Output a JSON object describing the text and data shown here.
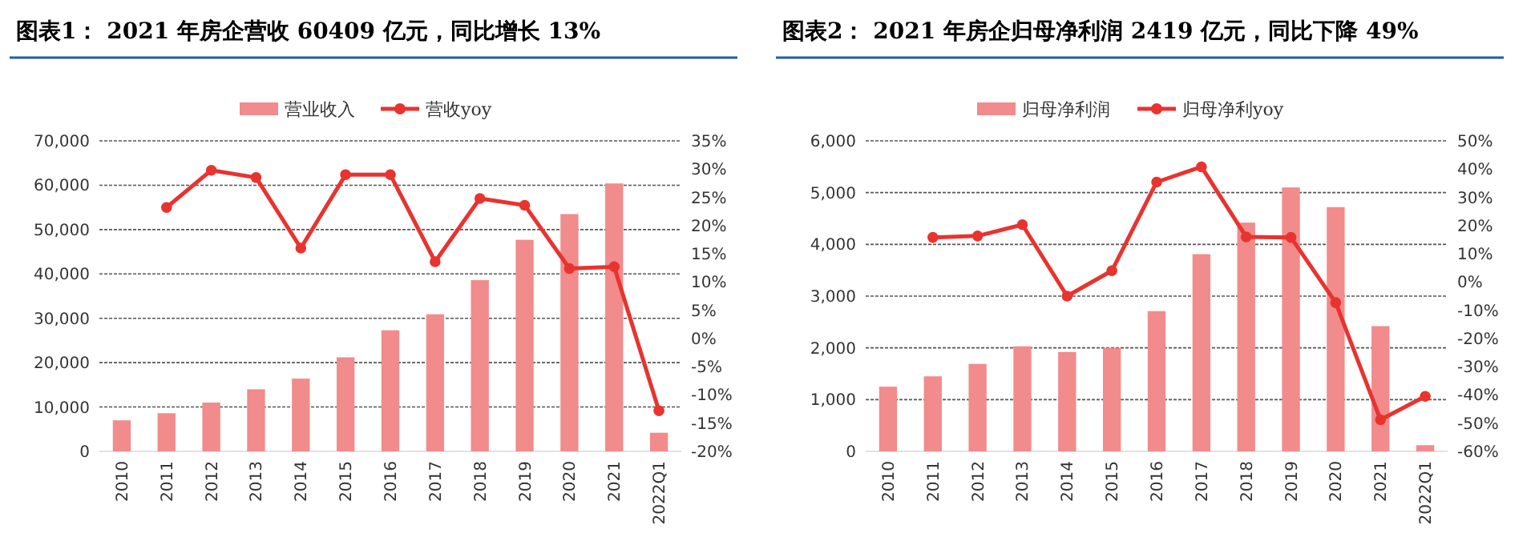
{
  "chart_data": [
    {
      "type": "bar",
      "title": "图表1：  2021 年房企营收 60409 亿元，同比增长 13%",
      "categories": [
        "2010",
        "2011",
        "2012",
        "2013",
        "2014",
        "2015",
        "2016",
        "2017",
        "2018",
        "2019",
        "2020",
        "2021",
        "2022Q1"
      ],
      "series": [
        {
          "name": "营业收入",
          "color": "#f28b8b",
          "values": [
            7000,
            8600,
            11000,
            14000,
            16400,
            21200,
            27300,
            30900,
            38600,
            47700,
            53500,
            60400,
            4200
          ]
        },
        {
          "name": "营收yoy",
          "type": "line",
          "axis": "y2",
          "color": "#e8332f",
          "values": [
            null,
            23.2,
            29.8,
            28.5,
            16,
            29,
            29,
            13.6,
            24.8,
            23.6,
            12.4,
            12.7,
            -12.8
          ]
        }
      ],
      "ylim": [
        0,
        70000
      ],
      "yticks": [
        {
          "value": 0,
          "label": "0"
        },
        {
          "value": 10000,
          "label": "10,000"
        },
        {
          "value": 20000,
          "label": "20,000"
        },
        {
          "value": 30000,
          "label": "30,000"
        },
        {
          "value": 40000,
          "label": "40,000"
        },
        {
          "value": 50000,
          "label": "50,000"
        },
        {
          "value": 60000,
          "label": "60,000"
        },
        {
          "value": 70000,
          "label": "70,000"
        }
      ],
      "y2lim": [
        -20,
        35
      ],
      "y2ticks": [
        {
          "value": -20,
          "label": "-20%"
        },
        {
          "value": -15,
          "label": "-15%"
        },
        {
          "value": -10,
          "label": "-10%"
        },
        {
          "value": -5,
          "label": "-5%"
        },
        {
          "value": 0,
          "label": "0%"
        },
        {
          "value": 5,
          "label": "5%"
        },
        {
          "value": 10,
          "label": "10%"
        },
        {
          "value": 15,
          "label": "15%"
        },
        {
          "value": 20,
          "label": "20%"
        },
        {
          "value": 25,
          "label": "25%"
        },
        {
          "value": 30,
          "label": "30%"
        },
        {
          "value": 35,
          "label": "35%"
        }
      ],
      "grid": "y",
      "legend": "top",
      "marker": "circle"
    },
    {
      "type": "bar",
      "title": "图表2：  2021 年房企归母净利润 2419 亿元，同比下降 49%",
      "categories": [
        "2010",
        "2011",
        "2012",
        "2013",
        "2014",
        "2015",
        "2016",
        "2017",
        "2018",
        "2019",
        "2020",
        "2021",
        "2022Q1"
      ],
      "series": [
        {
          "name": "归母净利润",
          "color": "#f28b8b",
          "values": [
            1250,
            1450,
            1690,
            2030,
            1920,
            2000,
            2710,
            3810,
            4420,
            5100,
            4720,
            2420,
            120
          ]
        },
        {
          "name": "归母净利yoy",
          "type": "line",
          "axis": "y2",
          "color": "#e8332f",
          "values": [
            null,
            15.8,
            16.3,
            20.3,
            -5,
            4,
            35.4,
            40.8,
            16,
            15.8,
            -7.3,
            -48.8,
            -40.5
          ]
        }
      ],
      "ylim": [
        0,
        6000
      ],
      "yticks": [
        {
          "value": 0,
          "label": "0"
        },
        {
          "value": 1000,
          "label": "1,000"
        },
        {
          "value": 2000,
          "label": "2,000"
        },
        {
          "value": 3000,
          "label": "3,000"
        },
        {
          "value": 4000,
          "label": "4,000"
        },
        {
          "value": 5000,
          "label": "5,000"
        },
        {
          "value": 6000,
          "label": "6,000"
        }
      ],
      "y2lim": [
        -60,
        50
      ],
      "y2ticks": [
        {
          "value": -60,
          "label": "-60%"
        },
        {
          "value": -50,
          "label": "-50%"
        },
        {
          "value": -40,
          "label": "-40%"
        },
        {
          "value": -30,
          "label": "-30%"
        },
        {
          "value": -20,
          "label": "-20%"
        },
        {
          "value": -10,
          "label": "-10%"
        },
        {
          "value": 0,
          "label": "0%"
        },
        {
          "value": 10,
          "label": "10%"
        },
        {
          "value": 20,
          "label": "20%"
        },
        {
          "value": 30,
          "label": "30%"
        },
        {
          "value": 40,
          "label": "40%"
        },
        {
          "value": 50,
          "label": "50%"
        }
      ],
      "grid": "y",
      "legend": "top",
      "marker": "circle"
    }
  ]
}
